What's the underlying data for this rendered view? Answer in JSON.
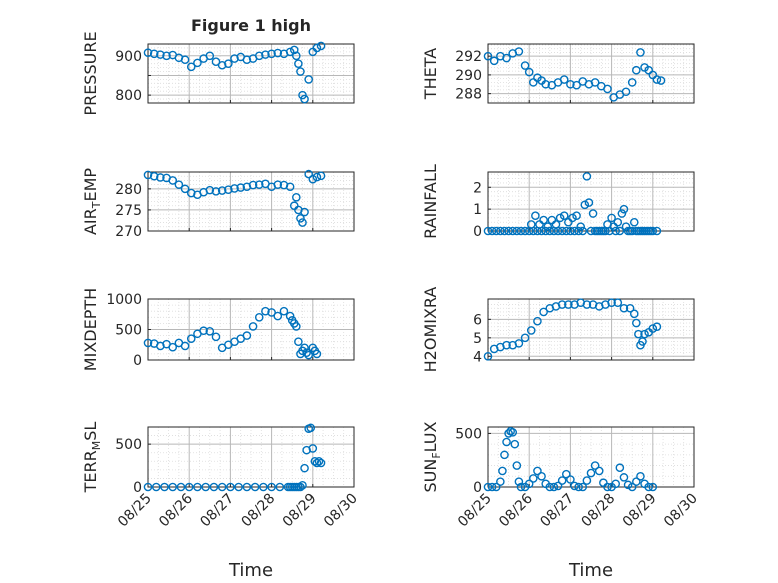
{
  "figure_title": "Figure 1 high",
  "colors": {
    "marker": "#0072BD",
    "axis": "#262626",
    "grid": "#b8b8b8",
    "minor_grid": "#dcdcdc"
  },
  "chart_data": [
    {
      "type": "scatter",
      "panel": "pressure",
      "title": "Figure 1 high",
      "ylabel": "PRESSURE",
      "ylim": [
        780,
        930
      ],
      "yticks": [
        800,
        850,
        900
      ],
      "ytick_labels": [
        "800",
        "",
        "900"
      ],
      "x": [
        0,
        0.15,
        0.3,
        0.45,
        0.6,
        0.75,
        0.9,
        1.05,
        1.2,
        1.35,
        1.5,
        1.65,
        1.8,
        1.95,
        2.1,
        2.25,
        2.4,
        2.55,
        2.7,
        2.85,
        3.0,
        3.15,
        3.3,
        3.45,
        3.55,
        3.6,
        3.65,
        3.7,
        3.75,
        3.8,
        3.9,
        4.0,
        4.1,
        4.2
      ],
      "y": [
        908,
        905,
        903,
        900,
        902,
        895,
        890,
        872,
        882,
        893,
        900,
        885,
        876,
        880,
        893,
        897,
        890,
        893,
        900,
        903,
        905,
        907,
        905,
        910,
        915,
        900,
        880,
        860,
        800,
        790,
        840,
        910,
        920,
        925
      ]
    },
    {
      "type": "scatter",
      "panel": "theta",
      "ylabel": "THETA",
      "ylim": [
        287,
        293.3
      ],
      "yticks": [
        288,
        290,
        292
      ],
      "ytick_labels": [
        "288",
        "290",
        "292"
      ],
      "x": [
        0,
        0.15,
        0.3,
        0.45,
        0.6,
        0.75,
        0.9,
        1.0,
        1.1,
        1.2,
        1.3,
        1.4,
        1.55,
        1.7,
        1.85,
        2.0,
        2.15,
        2.3,
        2.45,
        2.6,
        2.75,
        2.9,
        3.05,
        3.2,
        3.35,
        3.5,
        3.6,
        3.7,
        3.8,
        3.9,
        4.0,
        4.1,
        4.2
      ],
      "y": [
        292,
        291.5,
        292,
        291.8,
        292.3,
        292.5,
        291,
        290.3,
        289.2,
        289.7,
        289.4,
        289,
        288.9,
        289.2,
        289.5,
        289.0,
        288.9,
        289.3,
        289.0,
        289.2,
        288.8,
        288.5,
        287.6,
        287.9,
        288.2,
        289.2,
        290.5,
        292.4,
        290.8,
        290.5,
        290,
        289.5,
        289.4
      ]
    },
    {
      "type": "scatter",
      "panel": "air_temp",
      "ylabel": "AIR_TEMP",
      "ylim": [
        270,
        284
      ],
      "yticks": [
        270,
        275,
        280
      ],
      "ytick_labels": [
        "270",
        "275",
        "280"
      ],
      "x": [
        0,
        0.15,
        0.3,
        0.45,
        0.6,
        0.75,
        0.9,
        1.05,
        1.2,
        1.35,
        1.5,
        1.65,
        1.8,
        1.95,
        2.1,
        2.25,
        2.4,
        2.55,
        2.7,
        2.85,
        3.0,
        3.15,
        3.3,
        3.45,
        3.55,
        3.6,
        3.65,
        3.7,
        3.75,
        3.8,
        3.9,
        4.0,
        4.1,
        4.2
      ],
      "y": [
        283.3,
        283,
        282.7,
        282.6,
        282,
        281,
        280,
        279,
        278.6,
        279.2,
        279.7,
        279.4,
        279.6,
        279.8,
        280.1,
        280.3,
        280.5,
        280.9,
        281,
        281.2,
        280.5,
        281,
        280.9,
        280.5,
        276,
        278,
        275,
        273,
        272,
        274.5,
        283.5,
        282.3,
        282.8,
        283.1
      ]
    },
    {
      "type": "scatter",
      "panel": "rainfall",
      "ylabel": "RAINFALL",
      "ylim": [
        0,
        2.7
      ],
      "yticks": [
        0,
        1,
        2
      ],
      "ytick_labels": [
        "0",
        "1",
        "2"
      ],
      "x": [
        0,
        0.1,
        0.2,
        0.3,
        0.4,
        0.5,
        0.6,
        0.7,
        0.8,
        0.9,
        1.0,
        1.05,
        1.1,
        1.15,
        1.2,
        1.25,
        1.3,
        1.35,
        1.4,
        1.45,
        1.5,
        1.55,
        1.6,
        1.65,
        1.7,
        1.75,
        1.8,
        1.85,
        1.9,
        1.95,
        2.0,
        2.05,
        2.1,
        2.15,
        2.2,
        2.25,
        2.3,
        2.35,
        2.4,
        2.45,
        2.5,
        2.55,
        2.6,
        2.65,
        2.7,
        2.75,
        2.8,
        2.85,
        2.9,
        2.95,
        3.0,
        3.05,
        3.1,
        3.15,
        3.2,
        3.25,
        3.3,
        3.35,
        3.4,
        3.45,
        3.5,
        3.55,
        3.6,
        3.65,
        3.7,
        3.75,
        3.8,
        3.85,
        3.9,
        3.95,
        4.0,
        4.1
      ],
      "y": [
        0,
        0,
        0,
        0,
        0,
        0,
        0,
        0,
        0,
        0,
        0,
        0.3,
        0,
        0.7,
        0,
        0.3,
        0,
        0.5,
        0,
        0.2,
        0,
        0.5,
        0,
        0.3,
        0,
        0.6,
        0,
        0.7,
        0,
        0.4,
        0,
        0.6,
        0,
        0.7,
        0,
        0.2,
        0,
        1.2,
        2.5,
        1.3,
        0,
        0.8,
        0,
        0,
        0,
        0,
        0,
        0,
        0.3,
        0,
        0.6,
        0.2,
        0,
        0.4,
        0,
        0.8,
        1.0,
        0.2,
        0,
        0,
        0,
        0.4,
        0,
        0,
        0,
        0,
        0,
        0,
        0,
        0,
        0,
        0
      ]
    },
    {
      "type": "scatter",
      "panel": "mixdepth",
      "ylabel": "MIXDEPTH",
      "ylim": [
        0,
        1000
      ],
      "yticks": [
        0,
        500,
        1000
      ],
      "ytick_labels": [
        "0",
        "500",
        "1000"
      ],
      "x": [
        0,
        0.15,
        0.3,
        0.45,
        0.6,
        0.75,
        0.9,
        1.05,
        1.2,
        1.35,
        1.5,
        1.65,
        1.8,
        1.95,
        2.1,
        2.25,
        2.4,
        2.55,
        2.7,
        2.85,
        3.0,
        3.15,
        3.3,
        3.45,
        3.5,
        3.55,
        3.6,
        3.65,
        3.7,
        3.75,
        3.8,
        3.85,
        3.9,
        4.0,
        4.05,
        4.1
      ],
      "y": [
        280,
        270,
        230,
        260,
        210,
        280,
        230,
        350,
        430,
        480,
        470,
        380,
        200,
        250,
        300,
        350,
        400,
        550,
        700,
        800,
        780,
        720,
        800,
        720,
        650,
        600,
        550,
        300,
        100,
        150,
        200,
        120,
        80,
        200,
        150,
        100
      ]
    },
    {
      "type": "scatter",
      "panel": "h2omixra",
      "ylabel": "H2OMIXRA",
      "ylim": [
        3.8,
        7.1
      ],
      "yticks": [
        4,
        5,
        6
      ],
      "ytick_labels": [
        "4",
        "5",
        "6"
      ],
      "x": [
        0,
        0.15,
        0.3,
        0.45,
        0.6,
        0.75,
        0.9,
        1.05,
        1.2,
        1.35,
        1.5,
        1.65,
        1.8,
        1.95,
        2.1,
        2.25,
        2.4,
        2.55,
        2.7,
        2.85,
        3.0,
        3.15,
        3.3,
        3.45,
        3.55,
        3.6,
        3.65,
        3.7,
        3.75,
        3.8,
        3.9,
        4.0,
        4.1
      ],
      "y": [
        4.0,
        4.4,
        4.5,
        4.6,
        4.6,
        4.7,
        5.0,
        5.4,
        5.9,
        6.4,
        6.6,
        6.7,
        6.8,
        6.8,
        6.8,
        6.9,
        6.8,
        6.8,
        6.7,
        6.8,
        6.9,
        6.9,
        6.6,
        6.6,
        6.3,
        5.8,
        5.2,
        4.6,
        4.8,
        5.2,
        5.3,
        5.5,
        5.6
      ]
    },
    {
      "type": "scatter",
      "panel": "terr_msl",
      "ylabel": "TERR_MSL",
      "xlabel": "Time",
      "ylim": [
        0,
        700
      ],
      "yticks": [
        0,
        500
      ],
      "ytick_labels": [
        "0",
        "500"
      ],
      "xlim": [
        0,
        5
      ],
      "xticks": [
        0,
        1,
        2,
        3,
        4,
        5
      ],
      "xtick_labels": [
        "08/25",
        "08/26",
        "08/27",
        "08/28",
        "08/29",
        "08/30"
      ],
      "x": [
        0,
        0.2,
        0.4,
        0.6,
        0.8,
        1.0,
        1.2,
        1.4,
        1.6,
        1.8,
        2.0,
        2.2,
        2.4,
        2.6,
        2.8,
        3.0,
        3.2,
        3.4,
        3.45,
        3.5,
        3.55,
        3.6,
        3.65,
        3.7,
        3.75,
        3.8,
        3.85,
        3.9,
        3.95,
        4.0,
        4.05,
        4.1,
        4.15,
        4.2
      ],
      "y": [
        0,
        0,
        0,
        0,
        0,
        0,
        0,
        0,
        0,
        0,
        0,
        0,
        0,
        0,
        0,
        0,
        0,
        0,
        0,
        0,
        0,
        0,
        0,
        0,
        20,
        220,
        430,
        680,
        690,
        450,
        300,
        280,
        300,
        280
      ]
    },
    {
      "type": "scatter",
      "panel": "sun_flux",
      "ylabel": "SUN_FLUX",
      "xlabel": "Time",
      "ylim": [
        0,
        560
      ],
      "yticks": [
        0,
        500
      ],
      "ytick_labels": [
        "0",
        "500"
      ],
      "xlim": [
        0,
        5
      ],
      "xticks": [
        0,
        1,
        2,
        3,
        4,
        5
      ],
      "xtick_labels": [
        "08/25",
        "08/26",
        "08/27",
        "08/28",
        "08/29",
        "08/30"
      ],
      "x": [
        0,
        0.1,
        0.2,
        0.3,
        0.35,
        0.4,
        0.45,
        0.5,
        0.55,
        0.6,
        0.65,
        0.7,
        0.75,
        0.8,
        0.9,
        1.0,
        1.1,
        1.2,
        1.3,
        1.4,
        1.5,
        1.6,
        1.7,
        1.8,
        1.9,
        2.0,
        2.1,
        2.2,
        2.3,
        2.4,
        2.5,
        2.6,
        2.7,
        2.8,
        2.9,
        3.0,
        3.1,
        3.2,
        3.3,
        3.4,
        3.5,
        3.6,
        3.7,
        3.8,
        3.9,
        4.0
      ],
      "y": [
        0,
        0,
        0,
        50,
        150,
        300,
        420,
        500,
        520,
        510,
        400,
        200,
        50,
        0,
        0,
        30,
        80,
        150,
        100,
        30,
        0,
        0,
        10,
        60,
        120,
        70,
        10,
        0,
        0,
        60,
        130,
        200,
        150,
        40,
        0,
        0,
        30,
        180,
        90,
        20,
        0,
        50,
        100,
        30,
        0,
        0
      ]
    }
  ]
}
